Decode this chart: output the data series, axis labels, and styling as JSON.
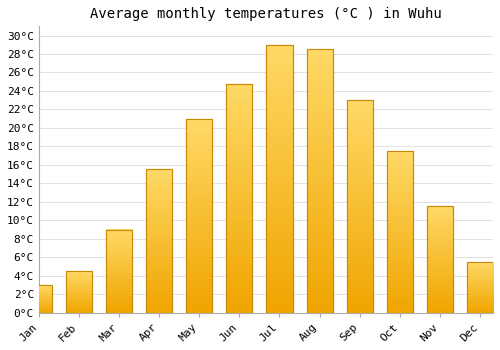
{
  "title": "Average monthly temperatures (°C ) in Wuhu",
  "months": [
    "Jan",
    "Feb",
    "Mar",
    "Apr",
    "May",
    "Jun",
    "Jul",
    "Aug",
    "Sep",
    "Oct",
    "Nov",
    "Dec"
  ],
  "temperatures": [
    3,
    4.5,
    9,
    15.5,
    21,
    24.7,
    29,
    28.5,
    23,
    17.5,
    11.5,
    5.5
  ],
  "bar_color_top": "#FFD966",
  "bar_color_bottom": "#F0A500",
  "bar_edge_color": "#C8880A",
  "background_color": "#FFFFFF",
  "grid_color": "#DDDDDD",
  "ylim": [
    0,
    31
  ],
  "yticks": [
    0,
    2,
    4,
    6,
    8,
    10,
    12,
    14,
    16,
    18,
    20,
    22,
    24,
    26,
    28,
    30
  ],
  "title_fontsize": 10,
  "tick_fontsize": 8,
  "font_family": "monospace"
}
